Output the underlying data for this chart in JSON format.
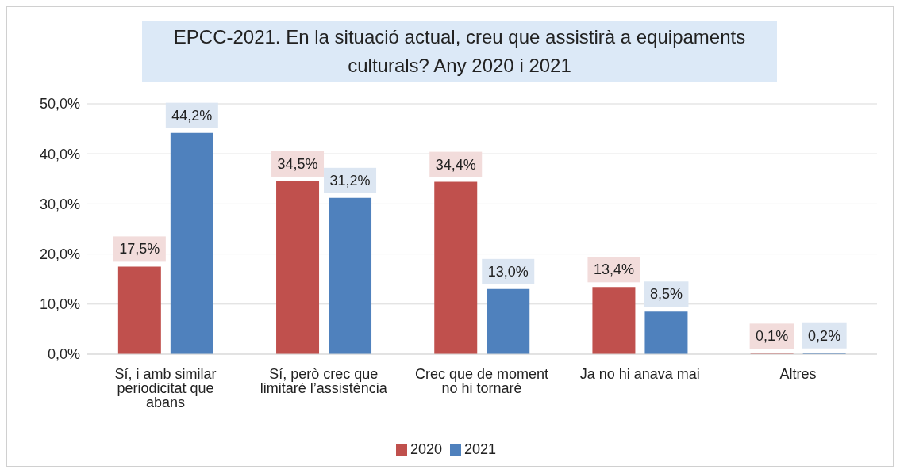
{
  "chart_data": {
    "type": "bar",
    "title": "EPCC-2021. En la situació actual, creu que assistirà a equipaments culturals? Any 2020 i 2021",
    "categories": [
      "Sí, i amb similar periodicitat que abans",
      "Sí, però crec que limitaré l’assistència",
      "Crec que de moment no hi tornaré",
      "Ja no hi anava mai",
      "Altres"
    ],
    "series": [
      {
        "name": "2020",
        "color": "#c0504d",
        "values": [
          17.5,
          34.5,
          34.4,
          13.4,
          0.1
        ],
        "value_labels": [
          "17,5%",
          "34,5%",
          "34,4%",
          "13,4%",
          "0,1%"
        ]
      },
      {
        "name": "2021",
        "color": "#4f81bd",
        "values": [
          44.2,
          31.2,
          13.0,
          8.5,
          0.2
        ],
        "value_labels": [
          "44,2%",
          "31,2%",
          "13,0%",
          "8,5%",
          "0,2%"
        ]
      }
    ],
    "ylim": [
      0,
      50
    ],
    "yticks": [
      {
        "value": 0,
        "label": "0,0%"
      },
      {
        "value": 10,
        "label": "10,0%"
      },
      {
        "value": 20,
        "label": "20,0%"
      },
      {
        "value": 30,
        "label": "30,0%"
      },
      {
        "value": 40,
        "label": "40,0%"
      },
      {
        "value": 50,
        "label": "50,0%"
      }
    ],
    "grid": "y",
    "legend": "bottom"
  }
}
